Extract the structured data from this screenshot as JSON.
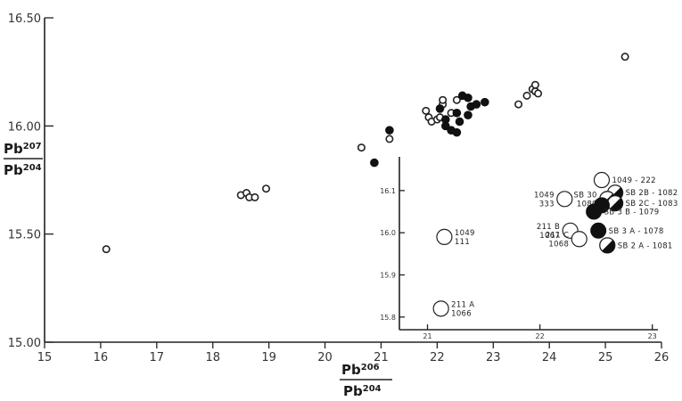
{
  "chart_data": [
    {
      "type": "scatter",
      "title": "",
      "xlabel": {
        "num": "Pb",
        "num_sup": "206",
        "den": "Pb",
        "den_sup": "204"
      },
      "ylabel": {
        "num": "Pb",
        "num_sup": "207",
        "den": "Pb",
        "den_sup": "204"
      },
      "xlim": [
        15,
        26
      ],
      "ylim": [
        15.0,
        16.5
      ],
      "x_ticks": [
        "15",
        "16",
        "17",
        "18",
        "19",
        "20",
        "21",
        "22",
        "23",
        "24",
        "25",
        "26"
      ],
      "y_ticks": [
        "15.00",
        "15.50",
        "16.00",
        "16.50"
      ],
      "y_tick_values": [
        15.0,
        15.5,
        16.0,
        16.5
      ],
      "series": [
        {
          "style": "open",
          "points": [
            [
              16.1,
              15.43
            ],
            [
              18.5,
              15.68
            ],
            [
              18.6,
              15.69
            ],
            [
              18.65,
              15.67
            ],
            [
              18.75,
              15.67
            ],
            [
              18.95,
              15.71
            ],
            [
              20.65,
              15.9
            ],
            [
              21.15,
              15.94
            ],
            [
              21.8,
              16.07
            ],
            [
              21.85,
              16.04
            ],
            [
              21.9,
              16.02
            ],
            [
              22.0,
              16.03
            ],
            [
              22.05,
              16.04
            ],
            [
              22.1,
              16.1
            ],
            [
              22.1,
              16.12
            ],
            [
              22.25,
              16.06
            ],
            [
              22.35,
              16.12
            ],
            [
              23.45,
              16.1
            ],
            [
              23.6,
              16.14
            ],
            [
              23.7,
              16.17
            ],
            [
              23.75,
              16.16
            ],
            [
              23.8,
              16.15
            ],
            [
              23.75,
              16.19
            ],
            [
              25.35,
              16.32
            ]
          ]
        },
        {
          "style": "filled",
          "points": [
            [
              20.88,
              15.83
            ],
            [
              21.15,
              15.98
            ],
            [
              22.05,
              16.08
            ],
            [
              22.15,
              16.03
            ],
            [
              22.15,
              16.0
            ],
            [
              22.25,
              15.98
            ],
            [
              22.35,
              15.97
            ],
            [
              22.35,
              16.06
            ],
            [
              22.4,
              16.02
            ],
            [
              22.45,
              16.14
            ],
            [
              22.55,
              16.13
            ],
            [
              22.55,
              16.05
            ],
            [
              22.6,
              16.09
            ],
            [
              22.7,
              16.1
            ],
            [
              22.85,
              16.11
            ]
          ]
        }
      ]
    },
    {
      "type": "scatter",
      "title": "",
      "xlim": [
        20.75,
        23.05
      ],
      "ylim": [
        15.77,
        16.18
      ],
      "x_ticks": [
        "21",
        "22",
        "23"
      ],
      "y_ticks": [
        "15.8",
        "15.9",
        "16.0",
        "16.1"
      ],
      "y_tick_values": [
        15.8,
        15.9,
        16.0,
        16.1
      ],
      "series": [
        {
          "style": "open",
          "points": [
            {
              "x": 21.15,
              "y": 15.99,
              "label": [
                "1049",
                "111"
              ],
              "label_side": "right"
            },
            {
              "x": 21.12,
              "y": 15.82,
              "label": [
                "211 A",
                "1066"
              ],
              "label_side": "right"
            },
            {
              "x": 22.55,
              "y": 16.125,
              "label": [
                "1049 - 222"
              ],
              "label_side": "right"
            },
            {
              "x": 22.22,
              "y": 16.08,
              "label": [
                "1049",
                "333"
              ],
              "label_side": "left"
            },
            {
              "x": 22.27,
              "y": 16.005,
              "label": [
                "211 B",
                "1067"
              ],
              "label_side": "left"
            },
            {
              "x": 22.35,
              "y": 15.985,
              "label": [
                "211 C",
                "1068"
              ],
              "label_side": "left"
            }
          ]
        },
        {
          "style": "half",
          "points": [
            {
              "x": 22.67,
              "y": 16.095,
              "label": [
                "SB 2B - 1082"
              ],
              "label_side": "right"
            },
            {
              "x": 22.6,
              "y": 16.08,
              "label": [
                "SB 30",
                "1080"
              ],
              "label_side": "left"
            },
            {
              "x": 22.67,
              "y": 16.07,
              "label": [
                "SB 2C - 1083"
              ],
              "label_side": "right"
            },
            {
              "x": 22.6,
              "y": 15.97,
              "label": [
                "SB 2 A - 1081"
              ],
              "label_side": "right"
            }
          ]
        },
        {
          "style": "filled",
          "points": [
            {
              "x": 22.55,
              "y": 16.065,
              "label": [],
              "label_side": "right"
            },
            {
              "x": 22.48,
              "y": 16.05,
              "label": [
                "SB 3 B - 1079"
              ],
              "label_side": "right"
            },
            {
              "x": 22.52,
              "y": 16.005,
              "label": [
                "SB 3 A - 1078"
              ],
              "label_side": "right"
            }
          ]
        }
      ]
    }
  ]
}
